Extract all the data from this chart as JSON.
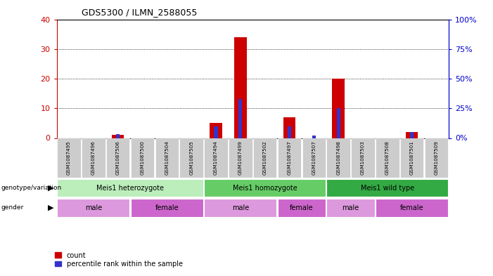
{
  "title": "GDS5300 / ILMN_2588055",
  "samples": [
    "GSM1087495",
    "GSM1087496",
    "GSM1087506",
    "GSM1087500",
    "GSM1087504",
    "GSM1087505",
    "GSM1087494",
    "GSM1087499",
    "GSM1087502",
    "GSM1087497",
    "GSM1087507",
    "GSM1087498",
    "GSM1087503",
    "GSM1087508",
    "GSM1087501",
    "GSM1087509"
  ],
  "count": [
    0,
    0,
    1,
    0,
    0,
    0,
    5,
    34,
    0,
    7,
    0,
    20,
    0,
    0,
    2,
    0
  ],
  "percentile": [
    0,
    0,
    3,
    0,
    0,
    0,
    10,
    33,
    0,
    10,
    2,
    25,
    0,
    0,
    5,
    0
  ],
  "ylim_left": [
    0,
    40
  ],
  "ylim_right": [
    0,
    100
  ],
  "yticks_left": [
    0,
    10,
    20,
    30,
    40
  ],
  "yticks_right": [
    0,
    25,
    50,
    75,
    100
  ],
  "genotype_groups": [
    {
      "label": "Meis1 heterozygote",
      "start": 0,
      "end": 5
    },
    {
      "label": "Meis1 homozygote",
      "start": 6,
      "end": 10
    },
    {
      "label": "Meis1 wild type",
      "start": 11,
      "end": 15
    }
  ],
  "genotype_colors": [
    "#bbeebb",
    "#66cc66",
    "#33aa44"
  ],
  "gender_groups": [
    {
      "label": "male",
      "start": 0,
      "end": 2
    },
    {
      "label": "female",
      "start": 3,
      "end": 5
    },
    {
      "label": "male",
      "start": 6,
      "end": 8
    },
    {
      "label": "female",
      "start": 9,
      "end": 10
    },
    {
      "label": "male",
      "start": 11,
      "end": 12
    },
    {
      "label": "female",
      "start": 13,
      "end": 15
    }
  ],
  "gender_color_male": "#dd99dd",
  "gender_color_female": "#cc66cc",
  "count_color": "#cc0000",
  "percentile_color": "#3333cc",
  "bg_color": "#ffffff",
  "left_axis_color": "#cc0000",
  "right_axis_color": "#0000cc",
  "grid_color": "#000000",
  "label_bg_color": "#cccccc"
}
